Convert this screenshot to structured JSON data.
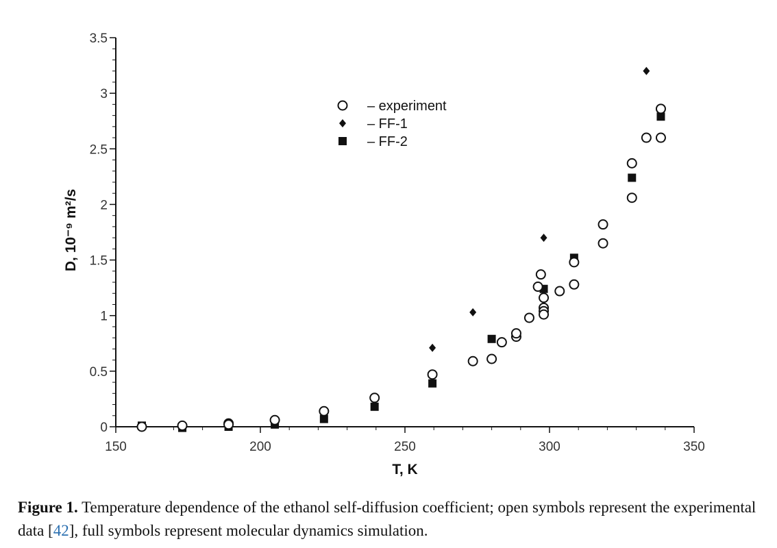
{
  "chart_data": {
    "type": "scatter",
    "xlabel": "T, K",
    "ylabel": "D, 10⁻⁹ m²/s",
    "xlim": [
      150,
      350
    ],
    "ylim": [
      0,
      3.5
    ],
    "x_ticks": [
      150,
      200,
      250,
      300,
      350
    ],
    "x_tick_labels": [
      "150",
      "200",
      "250",
      "300",
      "350"
    ],
    "y_ticks": [
      0,
      0.5,
      1,
      1.5,
      2,
      2.5,
      3,
      3.5
    ],
    "y_tick_labels": [
      "0",
      "0.5",
      "1",
      "1.5",
      "2",
      "2.5",
      "3",
      "3.5"
    ],
    "grid": false,
    "legend_position": "top-center",
    "series": [
      {
        "name": "– experiment",
        "marker": "open-circle",
        "points": [
          [
            159,
            0.0
          ],
          [
            173,
            0.01
          ],
          [
            189,
            0.03
          ],
          [
            189,
            0.02
          ],
          [
            205,
            0.06
          ],
          [
            222,
            0.14
          ],
          [
            239.5,
            0.26
          ],
          [
            259.5,
            0.47
          ],
          [
            273.5,
            0.59
          ],
          [
            280,
            0.61
          ],
          [
            283.5,
            0.76
          ],
          [
            288.5,
            0.81
          ],
          [
            288.5,
            0.84
          ],
          [
            293,
            0.98
          ],
          [
            296,
            1.26
          ],
          [
            297,
            1.37
          ],
          [
            298,
            1.16
          ],
          [
            298,
            1.07
          ],
          [
            298,
            1.04
          ],
          [
            298,
            1.01
          ],
          [
            303.5,
            1.22
          ],
          [
            308.5,
            1.28
          ],
          [
            308.5,
            1.48
          ],
          [
            318.5,
            1.65
          ],
          [
            318.5,
            1.82
          ],
          [
            328.5,
            2.06
          ],
          [
            328.5,
            2.37
          ],
          [
            333.5,
            2.6
          ],
          [
            338.5,
            2.6
          ],
          [
            338.5,
            2.86
          ]
        ]
      },
      {
        "name": "– FF-1",
        "marker": "filled-diamond",
        "points": [
          [
            259.5,
            0.71
          ],
          [
            273.5,
            1.03
          ],
          [
            298,
            1.7
          ],
          [
            333.5,
            3.2
          ]
        ]
      },
      {
        "name": "– FF-2",
        "marker": "filled-square",
        "points": [
          [
            159,
            0.01
          ],
          [
            173,
            -0.01
          ],
          [
            189,
            0.0
          ],
          [
            205,
            0.02
          ],
          [
            222,
            0.07
          ],
          [
            239.5,
            0.18
          ],
          [
            259.5,
            0.39
          ],
          [
            280,
            0.79
          ],
          [
            298,
            1.24
          ],
          [
            308.5,
            1.52
          ],
          [
            328.5,
            2.24
          ],
          [
            338.5,
            2.79
          ]
        ]
      }
    ]
  },
  "caption": {
    "label": "Figure 1.",
    "text_part1": " Temperature dependence of the ethanol self-diffusion coefficient; open symbols represent the experimental data [",
    "citation": "42",
    "text_part2": "], full symbols represent molecular dynamics simulation."
  }
}
